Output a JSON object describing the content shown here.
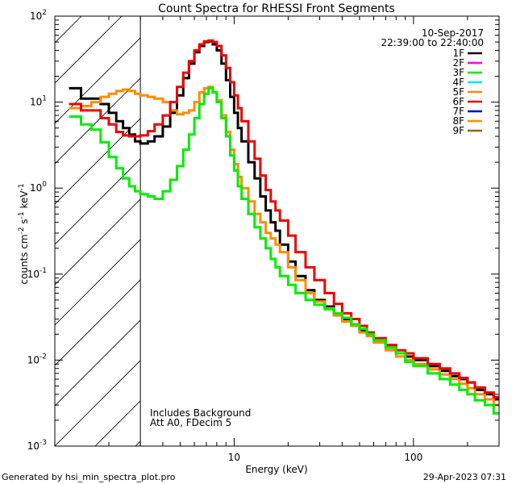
{
  "chart_data": {
    "type": "line",
    "title": "Count Spectra for RHESSI Front Segments",
    "xlabel": "Energy (keV)",
    "ylabel_parts": [
      "counts cm",
      "-2",
      " s",
      "-1",
      " keV",
      "-1"
    ],
    "xscale": "log",
    "yscale": "log",
    "xlim": [
      1.0,
      300.0
    ],
    "ylim": [
      0.001,
      100.0
    ],
    "x_ticks": [
      {
        "value": 10,
        "label": "10"
      },
      {
        "value": 100,
        "label": "100"
      }
    ],
    "y_ticks": [
      {
        "value": 0.001,
        "base": "10",
        "exp": "-3"
      },
      {
        "value": 0.01,
        "base": "10",
        "exp": "-2"
      },
      {
        "value": 0.1,
        "base": "10",
        "exp": "-1"
      },
      {
        "value": 1,
        "base": "10",
        "exp": "0"
      },
      {
        "value": 10,
        "base": "10",
        "exp": "1"
      },
      {
        "value": 100,
        "base": "10",
        "exp": "2"
      }
    ],
    "hatched_region_x": [
      1.0,
      3.0
    ],
    "vertical_line_x": 3.0,
    "date": "10-Sep-2017",
    "time_range": "22:39:00 to 22:40:00",
    "legend": [
      {
        "name": "1F",
        "color": "#000000"
      },
      {
        "name": "2F",
        "color": "#ff00ff"
      },
      {
        "name": "3F",
        "color": "#00ee00"
      },
      {
        "name": "4F",
        "color": "#00e5ee"
      },
      {
        "name": "5F",
        "color": "#ff8c00"
      },
      {
        "name": "6F",
        "color": "#ee0000"
      },
      {
        "name": "7F",
        "color": "#0000cd"
      },
      {
        "name": "8F",
        "color": "#ff8c00"
      },
      {
        "name": "9F",
        "color": "#8b6914"
      }
    ],
    "annotation_lines": [
      "Includes Background",
      "Att A0, FDecim 5"
    ],
    "series": [
      {
        "name": "1F",
        "color": "#000000",
        "points": [
          [
            1.2,
            14.5
          ],
          [
            1.4,
            11.0
          ],
          [
            1.6,
            11.0
          ],
          [
            1.8,
            9.5
          ],
          [
            2.0,
            7.5
          ],
          [
            2.2,
            6.0
          ],
          [
            2.4,
            5.0
          ],
          [
            2.6,
            4.2
          ],
          [
            2.8,
            3.5
          ],
          [
            3.0,
            3.3
          ],
          [
            3.3,
            3.5
          ],
          [
            3.6,
            4.0
          ],
          [
            4.0,
            5.2
          ],
          [
            4.4,
            7.5
          ],
          [
            4.8,
            12.0
          ],
          [
            5.2,
            19.0
          ],
          [
            5.6,
            28.0
          ],
          [
            6.0,
            38.0
          ],
          [
            6.4,
            45.0
          ],
          [
            6.8,
            50.0
          ],
          [
            7.2,
            51.0
          ],
          [
            7.6,
            47.0
          ],
          [
            8.0,
            40.0
          ],
          [
            8.5,
            28.0
          ],
          [
            9.0,
            18.0
          ],
          [
            9.5,
            11.5
          ],
          [
            10.0,
            7.5
          ],
          [
            10.5,
            5.0
          ],
          [
            11.0,
            3.5
          ],
          [
            12.0,
            2.0
          ],
          [
            13.0,
            1.3
          ],
          [
            14.0,
            0.8
          ],
          [
            15.0,
            0.55
          ],
          [
            16.0,
            0.4
          ],
          [
            17.0,
            0.32
          ],
          [
            18.0,
            0.22
          ],
          [
            20.0,
            0.14
          ],
          [
            22.0,
            0.095
          ],
          [
            25.0,
            0.065
          ],
          [
            28.0,
            0.05
          ],
          [
            32.0,
            0.042
          ],
          [
            36.0,
            0.034
          ],
          [
            40.0,
            0.03
          ],
          [
            45.0,
            0.026
          ],
          [
            50.0,
            0.022
          ],
          [
            55.0,
            0.02
          ],
          [
            60.0,
            0.017
          ],
          [
            70.0,
            0.014
          ],
          [
            80.0,
            0.012
          ],
          [
            90.0,
            0.011
          ],
          [
            100.0,
            0.01
          ],
          [
            120.0,
            0.0085
          ],
          [
            140.0,
            0.0075
          ],
          [
            160.0,
            0.0065
          ],
          [
            180.0,
            0.006
          ],
          [
            200.0,
            0.0055
          ],
          [
            220.0,
            0.0045
          ],
          [
            250.0,
            0.004
          ],
          [
            280.0,
            0.0035
          ]
        ]
      },
      {
        "name": "8F",
        "color": "#ff8c00",
        "points": [
          [
            1.2,
            8.5
          ],
          [
            1.4,
            9.0
          ],
          [
            1.6,
            10.0
          ],
          [
            1.8,
            11.5
          ],
          [
            2.0,
            12.5
          ],
          [
            2.2,
            13.5
          ],
          [
            2.4,
            14.0
          ],
          [
            2.6,
            13.5
          ],
          [
            2.8,
            12.5
          ],
          [
            3.0,
            12.0
          ],
          [
            3.3,
            11.5
          ],
          [
            3.6,
            11.0
          ],
          [
            4.0,
            10.0
          ],
          [
            4.4,
            8.0
          ],
          [
            4.8,
            7.2
          ],
          [
            5.2,
            7.5
          ],
          [
            5.6,
            8.0
          ],
          [
            6.0,
            10.0
          ],
          [
            6.4,
            13.0
          ],
          [
            6.8,
            14.5
          ],
          [
            7.2,
            15.0
          ],
          [
            7.6,
            13.0
          ],
          [
            8.0,
            10.5
          ],
          [
            8.5,
            7.0
          ],
          [
            9.0,
            4.5
          ],
          [
            9.5,
            2.8
          ],
          [
            10.0,
            1.9
          ],
          [
            10.5,
            1.35
          ],
          [
            11.0,
            1.0
          ],
          [
            12.0,
            0.7
          ],
          [
            13.0,
            0.5
          ],
          [
            14.0,
            0.4
          ],
          [
            15.0,
            0.3
          ],
          [
            16.0,
            0.26
          ],
          [
            17.0,
            0.22
          ],
          [
            18.0,
            0.18
          ],
          [
            20.0,
            0.12
          ],
          [
            22.0,
            0.085
          ],
          [
            25.0,
            0.06
          ],
          [
            28.0,
            0.048
          ],
          [
            32.0,
            0.04
          ],
          [
            36.0,
            0.033
          ],
          [
            40.0,
            0.028
          ],
          [
            45.0,
            0.025
          ],
          [
            50.0,
            0.021
          ],
          [
            55.0,
            0.019
          ],
          [
            60.0,
            0.016
          ],
          [
            70.0,
            0.013
          ],
          [
            80.0,
            0.011
          ],
          [
            90.0,
            0.01
          ],
          [
            100.0,
            0.009
          ],
          [
            120.0,
            0.0078
          ],
          [
            140.0,
            0.0068
          ],
          [
            160.0,
            0.006
          ],
          [
            180.0,
            0.0053
          ],
          [
            200.0,
            0.0047
          ],
          [
            220.0,
            0.004
          ],
          [
            250.0,
            0.0035
          ],
          [
            280.0,
            0.003
          ]
        ]
      },
      {
        "name": "6F",
        "color": "#ee0000",
        "points": [
          [
            1.2,
            9.5
          ],
          [
            1.4,
            8.0
          ],
          [
            1.6,
            8.0
          ],
          [
            1.8,
            6.5
          ],
          [
            2.0,
            5.5
          ],
          [
            2.2,
            4.5
          ],
          [
            2.4,
            4.1
          ],
          [
            2.6,
            4.0
          ],
          [
            2.8,
            4.0
          ],
          [
            3.0,
            4.1
          ],
          [
            3.3,
            4.6
          ],
          [
            3.6,
            5.5
          ],
          [
            4.0,
            7.0
          ],
          [
            4.4,
            10.0
          ],
          [
            4.8,
            15.0
          ],
          [
            5.2,
            22.0
          ],
          [
            5.6,
            30.0
          ],
          [
            6.0,
            40.0
          ],
          [
            6.4,
            47.0
          ],
          [
            6.8,
            51.0
          ],
          [
            7.2,
            52.0
          ],
          [
            7.6,
            50.0
          ],
          [
            8.0,
            45.0
          ],
          [
            8.5,
            35.0
          ],
          [
            9.0,
            25.0
          ],
          [
            9.5,
            17.0
          ],
          [
            10.0,
            12.0
          ],
          [
            10.5,
            8.5
          ],
          [
            11.0,
            6.0
          ],
          [
            12.0,
            3.5
          ],
          [
            13.0,
            2.2
          ],
          [
            14.0,
            1.4
          ],
          [
            15.0,
            0.95
          ],
          [
            16.0,
            0.7
          ],
          [
            17.0,
            0.55
          ],
          [
            18.0,
            0.42
          ],
          [
            20.0,
            0.28
          ],
          [
            22.0,
            0.18
          ],
          [
            25.0,
            0.12
          ],
          [
            28.0,
            0.085
          ],
          [
            32.0,
            0.06
          ],
          [
            36.0,
            0.045
          ],
          [
            40.0,
            0.035
          ],
          [
            45.0,
            0.03
          ],
          [
            50.0,
            0.025
          ],
          [
            55.0,
            0.021
          ],
          [
            60.0,
            0.018
          ],
          [
            70.0,
            0.015
          ],
          [
            80.0,
            0.013
          ],
          [
            90.0,
            0.012
          ],
          [
            100.0,
            0.0105
          ],
          [
            120.0,
            0.009
          ],
          [
            140.0,
            0.008
          ],
          [
            160.0,
            0.007
          ],
          [
            180.0,
            0.0062
          ],
          [
            200.0,
            0.0055
          ],
          [
            220.0,
            0.0048
          ],
          [
            250.0,
            0.0042
          ],
          [
            280.0,
            0.0037
          ]
        ]
      },
      {
        "name": "3F",
        "color": "#00ee00",
        "points": [
          [
            1.2,
            6.8
          ],
          [
            1.4,
            5.5
          ],
          [
            1.6,
            4.8
          ],
          [
            1.8,
            3.4
          ],
          [
            2.0,
            2.3
          ],
          [
            2.2,
            1.7
          ],
          [
            2.4,
            1.3
          ],
          [
            2.6,
            1.05
          ],
          [
            2.8,
            0.92
          ],
          [
            3.0,
            0.85
          ],
          [
            3.3,
            0.8
          ],
          [
            3.6,
            0.75
          ],
          [
            4.0,
            0.92
          ],
          [
            4.4,
            1.25
          ],
          [
            4.8,
            1.8
          ],
          [
            5.2,
            2.8
          ],
          [
            5.6,
            4.2
          ],
          [
            6.0,
            6.5
          ],
          [
            6.4,
            9.5
          ],
          [
            6.8,
            12.5
          ],
          [
            7.2,
            14.5
          ],
          [
            7.6,
            13.0
          ],
          [
            8.0,
            10.0
          ],
          [
            8.5,
            6.5
          ],
          [
            9.0,
            4.0
          ],
          [
            9.5,
            2.4
          ],
          [
            10.0,
            1.6
          ],
          [
            10.5,
            1.05
          ],
          [
            11.0,
            0.75
          ],
          [
            12.0,
            0.5
          ],
          [
            13.0,
            0.35
          ],
          [
            14.0,
            0.26
          ],
          [
            15.0,
            0.2
          ],
          [
            16.0,
            0.15
          ],
          [
            17.0,
            0.12
          ],
          [
            18.0,
            0.095
          ],
          [
            20.0,
            0.075
          ],
          [
            22.0,
            0.06
          ],
          [
            25.0,
            0.05
          ],
          [
            28.0,
            0.044
          ],
          [
            32.0,
            0.039
          ],
          [
            36.0,
            0.035
          ],
          [
            40.0,
            0.031
          ],
          [
            45.0,
            0.026
          ],
          [
            50.0,
            0.023
          ],
          [
            55.0,
            0.02
          ],
          [
            60.0,
            0.017
          ],
          [
            70.0,
            0.014
          ],
          [
            80.0,
            0.012
          ],
          [
            90.0,
            0.0095
          ],
          [
            100.0,
            0.0085
          ],
          [
            120.0,
            0.007
          ],
          [
            140.0,
            0.006
          ],
          [
            160.0,
            0.0052
          ],
          [
            180.0,
            0.0045
          ],
          [
            200.0,
            0.004
          ],
          [
            220.0,
            0.0034
          ],
          [
            250.0,
            0.003
          ],
          [
            280.0,
            0.0024
          ]
        ]
      }
    ]
  },
  "footer": {
    "generated_by": "Generated by hsi_min_spectra_plot.pro",
    "timestamp": "29-Apr-2023 07:31"
  }
}
